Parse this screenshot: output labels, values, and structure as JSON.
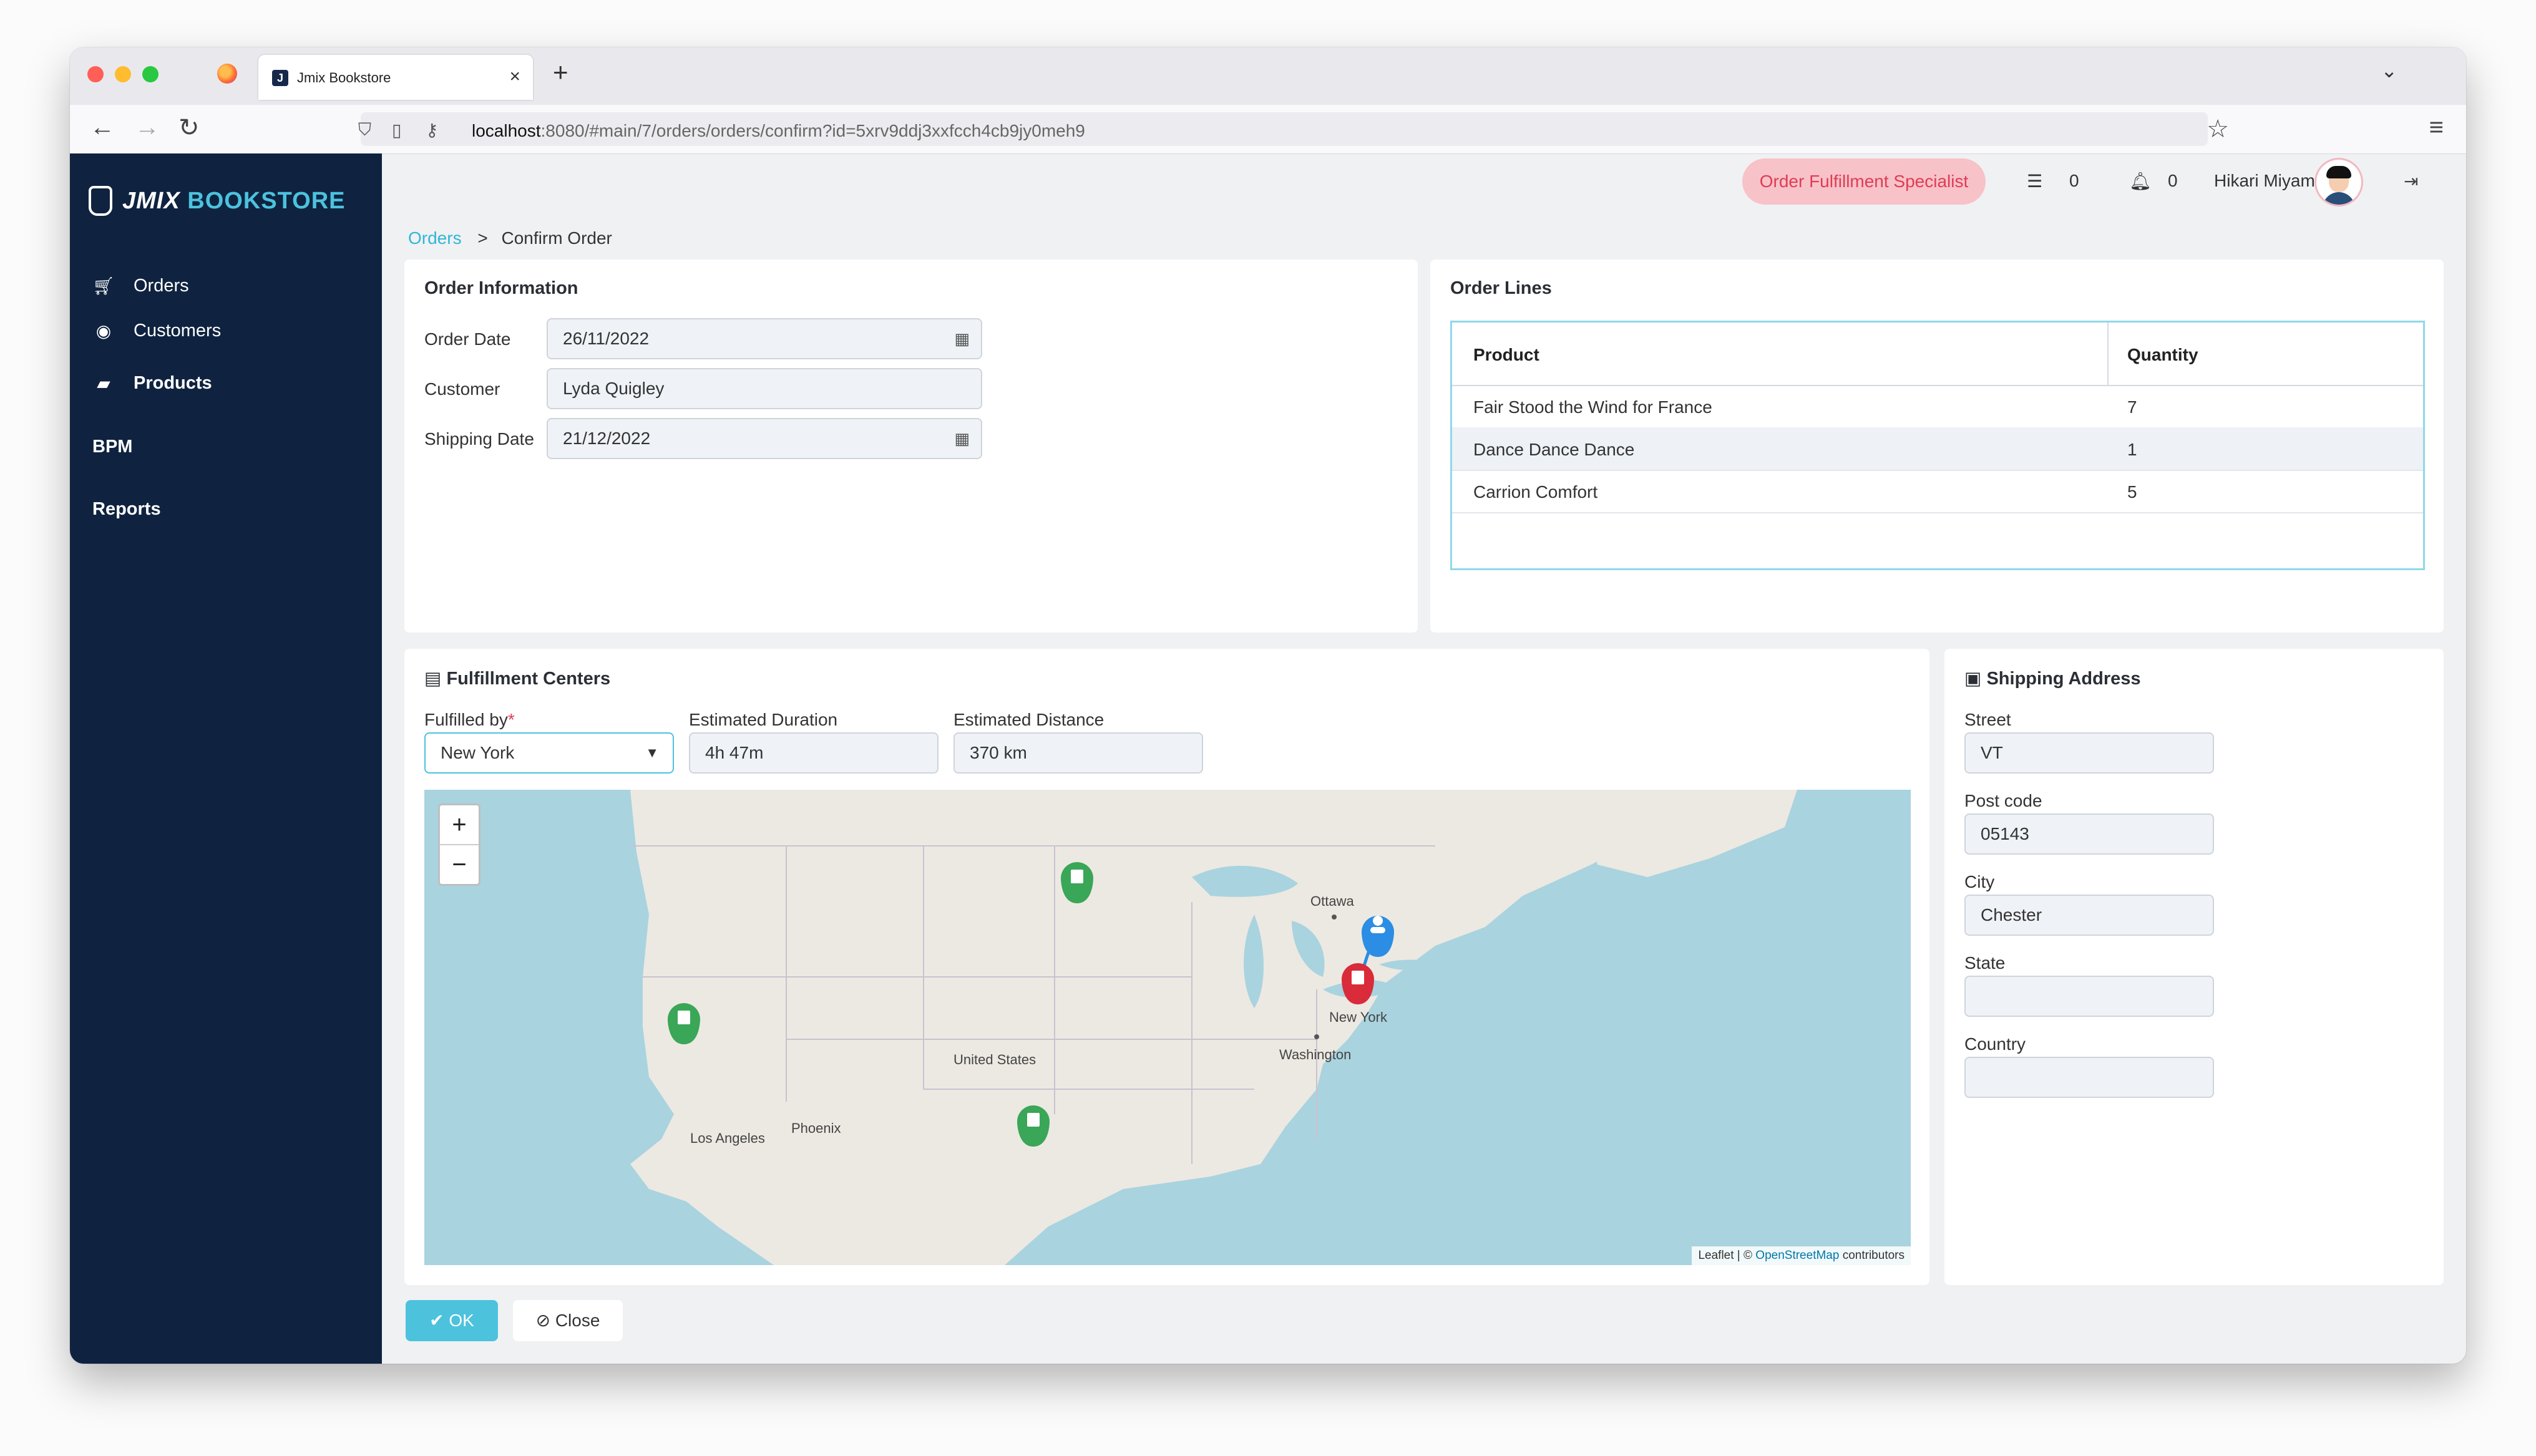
{
  "browser": {
    "tab_title": "Jmix Bookstore",
    "url_host": "localhost",
    "url_rest": ":8080/#main/7/orders/orders/confirm?id=5xrv9ddj3xxfcch4cb9jy0meh9"
  },
  "app": {
    "logo_part1": "JMIX",
    "logo_part2": "BOOKSTORE",
    "sidebar": {
      "items": [
        {
          "label": "Orders",
          "icon": "cart-icon"
        },
        {
          "label": "Customers",
          "icon": "user-circle-icon"
        },
        {
          "label": "Products",
          "icon": "book-icon"
        }
      ],
      "sections": [
        "BPM",
        "Reports"
      ]
    },
    "header": {
      "role": "Order Fulfillment Specialist",
      "task_count": "0",
      "notification_count": "0",
      "user_name": "Hikari Miyama"
    },
    "breadcrumb": {
      "parent": "Orders",
      "separator": ">",
      "current": "Confirm Order"
    }
  },
  "order_info": {
    "title": "Order Information",
    "order_date_label": "Order Date",
    "order_date": "26/11/2022",
    "customer_label": "Customer",
    "customer": "Lyda Quigley",
    "shipping_date_label": "Shipping Date",
    "shipping_date": "21/12/2022"
  },
  "order_lines": {
    "title": "Order Lines",
    "columns": [
      "Product",
      "Quantity"
    ],
    "rows": [
      {
        "product": "Fair Stood the Wind for France",
        "quantity": "7"
      },
      {
        "product": "Dance Dance Dance",
        "quantity": "1"
      },
      {
        "product": "Carrion Comfort",
        "quantity": "5"
      }
    ]
  },
  "fulfillment": {
    "title": "Fulfillment Centers",
    "fulfilled_by_label": "Fulfilled by",
    "fulfilled_by": "New York",
    "duration_label": "Estimated Duration",
    "duration": "4h 47m",
    "distance_label": "Estimated Distance",
    "distance": "370 km",
    "map": {
      "zoom_in": "+",
      "zoom_out": "−",
      "attribution_prefix": "Leaflet | ©",
      "attribution_link": "OpenStreetMap",
      "attribution_suffix": "contributors",
      "labels": {
        "ottawa": "Ottawa",
        "new_york": "New York",
        "washington": "Washington",
        "united_states": "United States",
        "phoenix": "Phoenix",
        "los_angeles": "Los Angeles"
      }
    }
  },
  "shipping": {
    "title": "Shipping Address",
    "street_label": "Street",
    "street": "VT",
    "postcode_label": "Post code",
    "postcode": "05143",
    "city_label": "City",
    "city": "Chester",
    "state_label": "State",
    "state": "",
    "country_label": "Country",
    "country": ""
  },
  "actions": {
    "ok": "OK",
    "close": "Close"
  },
  "colors": {
    "sidebar": "#0f2340",
    "accent": "#4cc2dd",
    "role_chip_bg": "#f7c2c8",
    "role_chip_text": "#e03c54",
    "marker_green": "#3aa657",
    "marker_red": "#d92b3a",
    "marker_blue": "#2b8de3"
  }
}
